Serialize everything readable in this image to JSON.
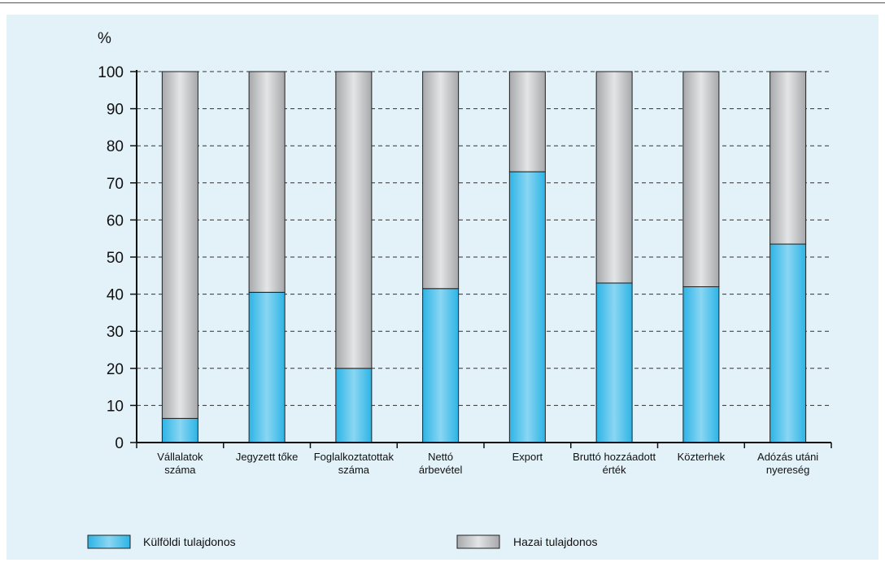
{
  "chart_data": {
    "type": "bar",
    "stacked": true,
    "ylabel": "%",
    "ylim": [
      0,
      100
    ],
    "yticks": [
      0,
      10,
      20,
      30,
      40,
      50,
      60,
      70,
      80,
      90,
      100
    ],
    "grid": "horizontal-dashed",
    "legend_position": "bottom",
    "categories": [
      [
        "Vállalatok",
        "száma"
      ],
      [
        "Jegyzett tőke"
      ],
      [
        "Foglalkoztatottak",
        "száma"
      ],
      [
        "Nettó",
        "árbevétel"
      ],
      [
        "Export"
      ],
      [
        "Bruttó hozzáadott",
        "érték"
      ],
      [
        "Közterhek"
      ],
      [
        "Adózás utáni",
        "nyereség"
      ]
    ],
    "series": [
      {
        "name": "Külföldi tulajdonos",
        "values": [
          6.5,
          40.5,
          20,
          41.5,
          73,
          43,
          42,
          53.5
        ]
      },
      {
        "name": "Hazai tulajdonos",
        "values": [
          93.5,
          59.5,
          80,
          58.5,
          27,
          57,
          58,
          46.5
        ]
      }
    ],
    "colors": {
      "foreign": "#2cb4e6",
      "foreign_light": "#8ad6f2",
      "domestic": "#a6a8ab",
      "domestic_light": "#e4e5e6",
      "background": "#e3f1f8",
      "grid": "#333333"
    }
  }
}
